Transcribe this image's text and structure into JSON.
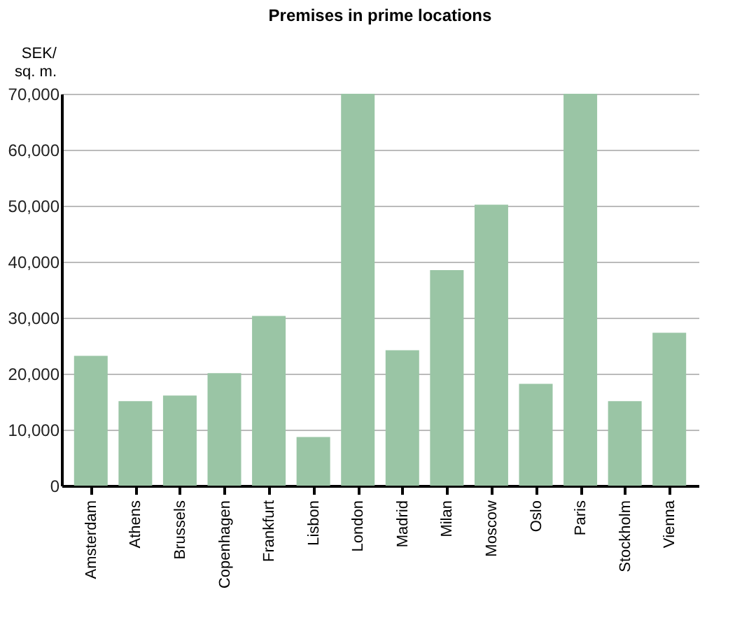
{
  "chart_data": {
    "type": "bar",
    "title": "Premises in prime locations",
    "ylabel": "SEK/\nsq. m.",
    "categories": [
      "Amsterdam",
      "Athens",
      "Brussels",
      "Copenhagen",
      "Frankfurt",
      "Lisbon",
      "London",
      "Madrid",
      "Milan",
      "Moscow",
      "Oslo",
      "Paris",
      "Stockholm",
      "Vienna"
    ],
    "values": [
      23200,
      15100,
      16100,
      20100,
      30300,
      8700,
      70000,
      24200,
      38500,
      50200,
      18200,
      70000,
      15100,
      27300
    ],
    "color": "#9ac5a5",
    "ylim": [
      0,
      70000
    ],
    "yticks": [
      0,
      {
        "value": 10000,
        "label": "10,000"
      },
      {
        "value": 20000,
        "label": "20,000"
      },
      {
        "value": 30000,
        "label": "30,000"
      },
      {
        "value": 40000,
        "label": "40,000"
      },
      {
        "value": 50000,
        "label": "50,000"
      },
      {
        "value": 60000,
        "label": "60,000"
      },
      {
        "value": 70000,
        "label": "70,000"
      }
    ],
    "grid": "y"
  }
}
